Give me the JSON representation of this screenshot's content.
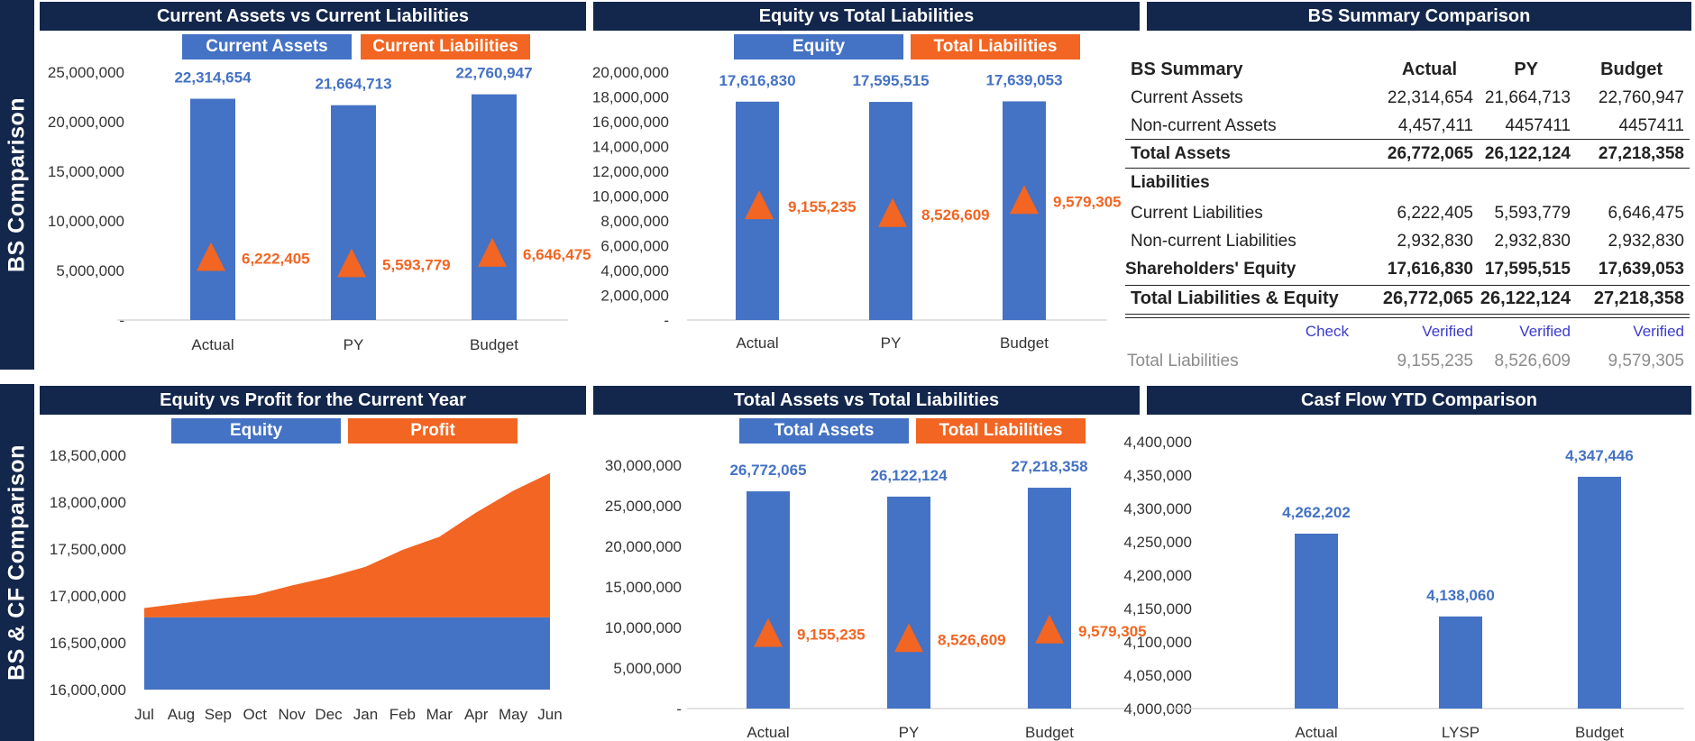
{
  "side_labels": {
    "top": "BS Comparison",
    "bottom": "BS & CF Comparison"
  },
  "colors": {
    "navy": "#13264b",
    "blue": "#4472c4",
    "orange": "#f26522",
    "verified": "#3b3bd0",
    "grey": "#8c8c8c"
  },
  "panels": {
    "p1": {
      "title": "Current Assets vs Current Liabilities",
      "legend": [
        "Current Assets",
        "Current Liabilities"
      ]
    },
    "p2": {
      "title": "Equity vs Total Liabilities",
      "legend": [
        "Equity",
        "Total Liabilities"
      ]
    },
    "p3": {
      "title": "BS Summary  Comparison"
    },
    "p4": {
      "title": "Equity vs Profit for the Current Year",
      "legend": [
        "Equity",
        "Profit"
      ]
    },
    "p5": {
      "title": "Total Assets vs Total Liabilities",
      "legend": [
        "Total Assets",
        "Total Liabilities"
      ]
    },
    "p6": {
      "title": "Casf Flow YTD Comparison"
    }
  },
  "bs_summary": {
    "header": [
      "BS Summary",
      "Actual",
      "PY",
      "Budget"
    ],
    "rows": [
      {
        "label": "Current Assets",
        "values": [
          "22,314,654",
          "21,664,713",
          "22,760,947"
        ]
      },
      {
        "label": "Non-current Assets",
        "values": [
          "4,457,411",
          "4457411",
          "4457411"
        ]
      },
      {
        "label": "Total Assets",
        "values": [
          "26,772,065",
          "26,122,124",
          "27,218,358"
        ]
      },
      {
        "label": "Liabilities",
        "values": [
          "",
          "",
          ""
        ]
      },
      {
        "label": "Current Liabilities",
        "values": [
          "6,222,405",
          "5,593,779",
          "6,646,475"
        ]
      },
      {
        "label": "Non-current Liabilities",
        "values": [
          "2,932,830",
          "2,932,830",
          "2,932,830"
        ]
      },
      {
        "label": "Shareholders' Equity",
        "values": [
          "17,616,830",
          "17,595,515",
          "17,639,053"
        ]
      },
      {
        "label": "Total Liabilities & Equity",
        "values": [
          "26,772,065",
          "26,122,124",
          "27,218,358"
        ]
      }
    ],
    "check": {
      "label": "Check",
      "values": [
        "Verified",
        "Verified",
        "Verified"
      ]
    },
    "total_liabilities": {
      "label": "Total Liabilities",
      "values": [
        "9,155,235",
        "8,526,609",
        "9,579,305"
      ]
    }
  },
  "chart_data": [
    {
      "id": "p1",
      "type": "bar",
      "categories": [
        "Actual",
        "PY",
        "Budget"
      ],
      "series": [
        {
          "name": "Current Assets",
          "values": [
            22314654,
            21664713,
            22760947
          ],
          "labels": [
            "22,314,654",
            "21,664,713",
            "22,760,947"
          ],
          "mark": "bar"
        },
        {
          "name": "Current Liabilities",
          "values": [
            6222405,
            5593779,
            6646475
          ],
          "labels": [
            "6,222,405",
            "5,593,779",
            "6,646,475"
          ],
          "mark": "triangle"
        }
      ],
      "ylim": [
        0,
        25000000
      ],
      "yticks": [
        0,
        5000000,
        10000000,
        15000000,
        20000000,
        25000000
      ],
      "yticklabels": [
        "-",
        "5,000,000",
        "10,000,000",
        "15,000,000",
        "20,000,000",
        "25,000,000"
      ]
    },
    {
      "id": "p2",
      "type": "bar",
      "categories": [
        "Actual",
        "PY",
        "Budget"
      ],
      "series": [
        {
          "name": "Equity",
          "values": [
            17616830,
            17595515,
            17639053
          ],
          "labels": [
            "17,616,830",
            "17,595,515",
            "17,639,053"
          ],
          "mark": "bar"
        },
        {
          "name": "Total Liabilities",
          "values": [
            9155235,
            8526609,
            9579305
          ],
          "labels": [
            "9,155,235",
            "8,526,609",
            "9,579,305"
          ],
          "mark": "triangle"
        }
      ],
      "ylim": [
        0,
        20000000
      ],
      "yticks": [
        0,
        2000000,
        4000000,
        6000000,
        8000000,
        10000000,
        12000000,
        14000000,
        16000000,
        18000000,
        20000000
      ],
      "yticklabels": [
        "-",
        "2,000,000",
        "4,000,000",
        "6,000,000",
        "8,000,000",
        "10,000,000",
        "12,000,000",
        "14,000,000",
        "16,000,000",
        "18,000,000",
        "20,000,000"
      ]
    },
    {
      "id": "p4",
      "type": "area",
      "x": [
        "Jul",
        "Aug",
        "Sep",
        "Oct",
        "Nov",
        "Dec",
        "Jan",
        "Feb",
        "Mar",
        "Apr",
        "May",
        "Jun"
      ],
      "series": [
        {
          "name": "Equity",
          "values": [
            16770000,
            16770000,
            16770000,
            16770000,
            16770000,
            16770000,
            16770000,
            16770000,
            16770000,
            16770000,
            16770000,
            16770000
          ]
        },
        {
          "name": "Profit",
          "values": [
            16870000,
            16920000,
            16970000,
            17010000,
            17110000,
            17200000,
            17310000,
            17490000,
            17630000,
            17890000,
            18120000,
            18310000
          ]
        }
      ],
      "ylim": [
        16000000,
        18500000
      ],
      "yticks": [
        16000000,
        16500000,
        17000000,
        17500000,
        18000000,
        18500000
      ],
      "yticklabels": [
        "16,000,000",
        "16,500,000",
        "17,000,000",
        "17,500,000",
        "18,000,000",
        "18,500,000"
      ]
    },
    {
      "id": "p5",
      "type": "bar",
      "categories": [
        "Actual",
        "PY",
        "Budget"
      ],
      "series": [
        {
          "name": "Total Assets",
          "values": [
            26772065,
            26122124,
            27218358
          ],
          "labels": [
            "26,772,065",
            "26,122,124",
            "27,218,358"
          ],
          "mark": "bar"
        },
        {
          "name": "Total Liabilities",
          "values": [
            9155235,
            8526609,
            9579305
          ],
          "labels": [
            "9,155,235",
            "8,526,609",
            "9,579,305"
          ],
          "mark": "triangle"
        }
      ],
      "ylim": [
        0,
        30000000
      ],
      "yticks": [
        0,
        5000000,
        10000000,
        15000000,
        20000000,
        25000000,
        30000000
      ],
      "yticklabels": [
        "-",
        "5,000,000",
        "10,000,000",
        "15,000,000",
        "20,000,000",
        "25,000,000",
        "30,000,000"
      ]
    },
    {
      "id": "p6",
      "type": "bar",
      "categories": [
        "Actual",
        "LYSP",
        "Budget"
      ],
      "series": [
        {
          "values": [
            4262202,
            4138060,
            4347446
          ],
          "labels": [
            "4,262,202",
            "4,138,060",
            "4,347,446"
          ],
          "mark": "bar"
        }
      ],
      "ylim": [
        4000000,
        4400000
      ],
      "yticks": [
        4000000,
        4050000,
        4100000,
        4150000,
        4200000,
        4250000,
        4300000,
        4350000,
        4400000
      ],
      "yticklabels": [
        "4,000,000",
        "4,050,000",
        "4,100,000",
        "4,150,000",
        "4,200,000",
        "4,250,000",
        "4,300,000",
        "4,350,000",
        "4,400,000"
      ]
    }
  ]
}
